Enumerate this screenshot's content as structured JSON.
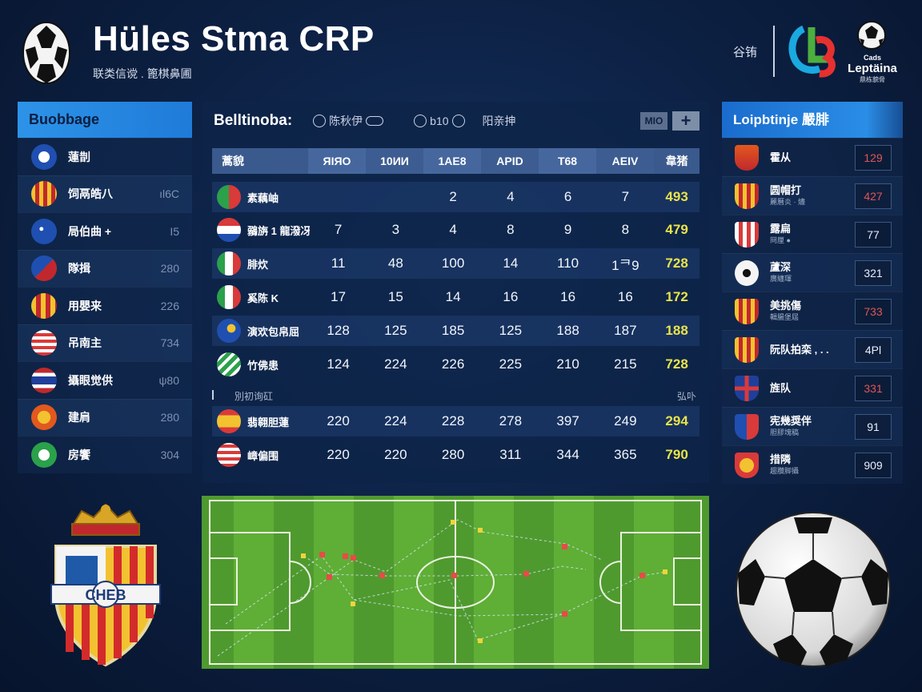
{
  "header": {
    "title": "Hüles Stma CRP",
    "subtitle": "联类信谠 . 篦棋鼻圃",
    "right_label": "谷铕",
    "brand_small": "Cads",
    "brand_name": "Leptäina",
    "brand_tiny": "鼎栋貌脅"
  },
  "left_panel": {
    "title": "Buobbage",
    "items": [
      {
        "name": "蓮剒",
        "value": "",
        "flag": "blue-circle"
      },
      {
        "name": "饲鬲皓八",
        "value": "ıl6C",
        "flag": "crest-yellow"
      },
      {
        "name": "局伯曲 +",
        "value": "I5",
        "flag": "blue-stars"
      },
      {
        "name": "隊揖",
        "value": "280",
        "flag": "shield-red-blue"
      },
      {
        "name": "用嬰来",
        "value": "226",
        "flag": "shield-red-yellow"
      },
      {
        "name": "吊南主",
        "value": "734",
        "flag": "us-flag"
      },
      {
        "name": "攝眼觉供",
        "value": "ψ80",
        "flag": "thai-flag"
      },
      {
        "name": "建肩",
        "value": "280",
        "flag": "crest-orange"
      },
      {
        "name": "房饗",
        "value": "304",
        "flag": "green-badge"
      }
    ]
  },
  "center_panel": {
    "title": "Belltinoba:",
    "controls": [
      {
        "label": "陈秋伊",
        "icon": "search-icon"
      },
      {
        "label": "b10",
        "icon": "settings-icon"
      },
      {
        "label": "阳亲抻",
        "icon": ""
      }
    ],
    "small_button": "MIO",
    "add_button": "+",
    "columns": [
      "蒿貌",
      "ЯIЯO",
      "10ИИ",
      "1AE8",
      "APID",
      "T68",
      "AEIV",
      "韋猪"
    ],
    "rows": [
      {
        "name": "素藕岫",
        "flag": "green-red",
        "cells": [
          "",
          "",
          "2",
          "4",
          "6",
          "7",
          "493"
        ]
      },
      {
        "name": "鶸旃 1 龍潑冴",
        "flag": "paraguay",
        "cells": [
          "7",
          "3",
          "4",
          "8",
          "9",
          "8",
          "479"
        ]
      },
      {
        "name": "腓炊",
        "flag": "italy-ish",
        "cells": [
          "11",
          "48",
          "100",
          "14",
          "110",
          "1ᄏ9",
          "728"
        ]
      },
      {
        "name": "奚陈 K",
        "flag": "italy",
        "cells": [
          "17",
          "15",
          "14",
          "16",
          "16",
          "16",
          "172"
        ]
      },
      {
        "name": "演欢包帛屈",
        "flag": "blue-yellow",
        "cells": [
          "128",
          "125",
          "185",
          "125",
          "188",
          "187",
          "188"
        ]
      },
      {
        "name": "竹佛患",
        "flag": "green-chevron",
        "cells": [
          "124",
          "224",
          "226",
          "225",
          "210",
          "215",
          "728"
        ]
      }
    ],
    "section_label": "別初询矼",
    "section_right": "弘卟",
    "rows2": [
      {
        "name": "翡翱胆蓮",
        "flag": "spain",
        "cells": [
          "220",
          "224",
          "228",
          "278",
          "397",
          "249",
          "294"
        ]
      },
      {
        "name": "嶂偏围",
        "flag": "us",
        "cells": [
          "220",
          "220",
          "280",
          "311",
          "344",
          "365",
          "790"
        ]
      }
    ]
  },
  "right_panel": {
    "title": "Loipbtinje 嚴腓",
    "items": [
      {
        "name": "霍从",
        "sub": "",
        "value": "129",
        "value_color": "#e05656",
        "badge": "badge-red"
      },
      {
        "name": "圆帽打",
        "sub": "麗曆炎 · 燼",
        "value": "427",
        "value_color": "#e05656",
        "badge": "badge-stripes"
      },
      {
        "name": "露扁",
        "sub": "冏厘 ●",
        "value": "77",
        "value_color": "#e8eef8",
        "badge": "badge-atletico"
      },
      {
        "name": "蘆深",
        "sub": "廣纏琿",
        "value": "321",
        "value_color": "#e8eef8",
        "badge": "soccer-ball"
      },
      {
        "name": "美挑傷",
        "sub": "輯腸堡屆",
        "value": "733",
        "value_color": "#e05656",
        "badge": "badge-stripes"
      },
      {
        "name": "阮队拍栾 , . .",
        "sub": "",
        "value": "4Pl",
        "value_color": "#e8eef8",
        "badge": "badge-stripes"
      },
      {
        "name": "旌队",
        "sub": "",
        "value": "331",
        "value_color": "#e05656",
        "badge": "uk-flag"
      },
      {
        "name": "宪幾奨伴",
        "sub": "胆膠塊稿",
        "value": "91",
        "value_color": "#e8eef8",
        "badge": "badge-blue-red"
      },
      {
        "name": "措隣",
        "sub": "趨臢脚攝",
        "value": "909",
        "value_color": "#e8eef8",
        "badge": "badge-yellow-red"
      }
    ]
  },
  "crest_text": "CHEB"
}
